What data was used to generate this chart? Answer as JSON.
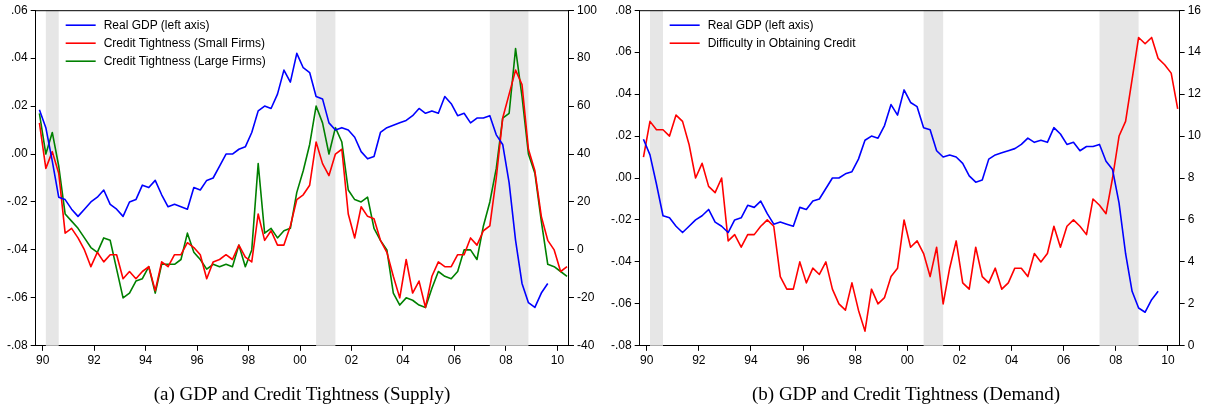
{
  "chart_data": [
    {
      "type": "line",
      "title": "(a) GDP and Credit Tightness (Supply)",
      "legend": "top left",
      "grid": false,
      "marker": "none",
      "line_style": "solid",
      "x": [
        1989.875,
        1990.125,
        1990.375,
        1990.625,
        1990.875,
        1991.125,
        1991.375,
        1991.625,
        1991.875,
        1992.125,
        1992.375,
        1992.625,
        1992.875,
        1993.125,
        1993.375,
        1993.625,
        1993.875,
        1994.125,
        1994.375,
        1994.625,
        1994.875,
        1995.125,
        1995.375,
        1995.625,
        1995.875,
        1996.125,
        1996.375,
        1996.625,
        1996.875,
        1997.125,
        1997.375,
        1997.625,
        1997.875,
        1998.125,
        1998.375,
        1998.625,
        1998.875,
        1999.125,
        1999.375,
        1999.625,
        1999.875,
        2000.125,
        2000.375,
        2000.625,
        2000.875,
        2001.125,
        2001.375,
        2001.625,
        2001.875,
        2002.125,
        2002.375,
        2002.625,
        2002.875,
        2003.125,
        2003.375,
        2003.625,
        2003.875,
        2004.125,
        2004.375,
        2004.625,
        2004.875,
        2005.125,
        2005.375,
        2005.625,
        2005.875,
        2006.125,
        2006.375,
        2006.625,
        2006.875,
        2007.125,
        2007.375,
        2007.625,
        2007.875,
        2008.125,
        2008.375,
        2008.625,
        2008.875,
        2009.125,
        2009.375,
        2009.625,
        2009.875,
        2010.125,
        2010.375
      ],
      "xlim": [
        1989.73,
        2010.45
      ],
      "xticks": [
        {
          "value": 1990,
          "label": "90"
        },
        {
          "value": 1992,
          "label": "92"
        },
        {
          "value": 1994,
          "label": "94"
        },
        {
          "value": 1996,
          "label": "96"
        },
        {
          "value": 1998,
          "label": "98"
        },
        {
          "value": 2000,
          "label": "00"
        },
        {
          "value": 2002,
          "label": "02"
        },
        {
          "value": 2004,
          "label": "04"
        },
        {
          "value": 2006,
          "label": "06"
        },
        {
          "value": 2008,
          "label": "08"
        },
        {
          "value": 2010,
          "label": "10"
        }
      ],
      "ylim": [
        -0.08,
        0.06
      ],
      "yticks": [
        {
          "value": 0.06,
          "label": ".06"
        },
        {
          "value": 0.04,
          "label": ".04"
        },
        {
          "value": 0.02,
          "label": ".02"
        },
        {
          "value": 0,
          "label": ".00"
        },
        {
          "value": -0.02,
          "label": "-.02"
        },
        {
          "value": -0.04,
          "label": "-.04"
        },
        {
          "value": -0.06,
          "label": "-.06"
        },
        {
          "value": -0.08,
          "label": "-.08"
        }
      ],
      "y2lim": [
        -40,
        100
      ],
      "y2ticks": [
        100,
        80,
        60,
        40,
        20,
        0,
        -20,
        -40
      ],
      "bands": [
        {
          "axis": "x",
          "from": 1990.125,
          "to": 1990.625,
          "color": "#e6e6e6"
        },
        {
          "axis": "x",
          "from": 2000.625,
          "to": 2001.375,
          "color": "#e6e6e6"
        },
        {
          "axis": "x",
          "from": 2007.375,
          "to": 2008.875,
          "color": "#e6e6e6"
        }
      ],
      "series": [
        {
          "name": "Real GDP (left axis)",
          "color": "#0000ff",
          "values": [
            0.0185,
            0.011,
            -0.003,
            -0.018,
            -0.019,
            -0.023,
            -0.026,
            -0.023,
            -0.02,
            -0.018,
            -0.015,
            -0.021,
            -0.023,
            -0.026,
            -0.02,
            -0.019,
            -0.013,
            -0.014,
            -0.011,
            -0.017,
            -0.022,
            -0.021,
            -0.022,
            -0.023,
            -0.014,
            -0.015,
            -0.011,
            -0.01,
            -0.005,
            0,
            0,
            0.002,
            0.003,
            0.009,
            0.018,
            0.02,
            0.019,
            0.025,
            0.035,
            0.03,
            0.042,
            0.036,
            0.034,
            0.024,
            0.023,
            0.013,
            0.01,
            0.011,
            0.01,
            0.007,
            0.001,
            -0.002,
            -0.001,
            0.009,
            0.011,
            0.012,
            0.013,
            0.014,
            0.016,
            0.019,
            0.017,
            0.018,
            0.017,
            0.024,
            0.021,
            0.016,
            0.017,
            0.013,
            0.015,
            0.015,
            0.016,
            0.008,
            0.004,
            -0.012,
            -0.036,
            -0.054,
            -0.062,
            -0.064,
            -0.058,
            -0.054,
            null,
            null,
            null
          ]
        },
        {
          "name": "Credit Tightness (Small Firms)",
          "color": "#ff0000",
          "axis": "y2",
          "values": [
            53,
            34,
            41,
            32,
            7,
            9,
            5,
            0,
            -7,
            -1,
            -5,
            -2,
            -2,
            -12,
            -9,
            -12,
            -9,
            -7,
            -17,
            -5,
            -7,
            -2,
            -2,
            3,
            1,
            -2,
            -12,
            -5,
            -4,
            -2,
            -4,
            2,
            -3,
            -5,
            15,
            4,
            8,
            2,
            2,
            10,
            21,
            23,
            27,
            45,
            36,
            31,
            40,
            42,
            15,
            5,
            18,
            14,
            13,
            4,
            -1,
            -11,
            -20,
            -4,
            -18,
            -13,
            -24,
            -11,
            -5,
            -7,
            -7,
            -2,
            -2,
            5,
            2,
            8,
            10,
            30,
            55,
            65,
            75,
            69,
            42,
            33,
            14,
            4,
            0,
            -9,
            -7
          ]
        },
        {
          "name": "Credit Tightness (Large Firms)",
          "color": "#008000",
          "axis": "y2",
          "values": [
            57,
            40,
            49,
            35,
            15,
            12,
            9,
            5,
            1,
            -1,
            5,
            4,
            -8,
            -20,
            -18,
            -13,
            -12,
            -7,
            -18,
            -6,
            -6,
            -6,
            -4,
            7,
            -1,
            -4,
            -8,
            -6,
            -7,
            -6,
            -7,
            2,
            -7,
            0,
            36,
            7,
            9,
            5,
            8,
            9,
            24,
            33,
            44,
            60,
            53,
            40,
            51,
            45,
            25,
            21,
            20,
            22,
            9,
            4,
            0,
            -18,
            -23,
            -20,
            -21,
            -23,
            -24,
            -16,
            -9,
            -11,
            -12,
            -9,
            0,
            0,
            -4,
            10,
            20,
            34,
            55,
            57,
            84,
            64,
            40,
            32,
            12,
            -6,
            -7,
            -9,
            -11
          ]
        }
      ]
    },
    {
      "type": "line",
      "title": "(b) GDP and Credit Tightness (Demand)",
      "legend": "top left",
      "grid": false,
      "marker": "none",
      "line_style": "solid",
      "x": [
        1989.875,
        1990.125,
        1990.375,
        1990.625,
        1990.875,
        1991.125,
        1991.375,
        1991.625,
        1991.875,
        1992.125,
        1992.375,
        1992.625,
        1992.875,
        1993.125,
        1993.375,
        1993.625,
        1993.875,
        1994.125,
        1994.375,
        1994.625,
        1994.875,
        1995.125,
        1995.375,
        1995.625,
        1995.875,
        1996.125,
        1996.375,
        1996.625,
        1996.875,
        1997.125,
        1997.375,
        1997.625,
        1997.875,
        1998.125,
        1998.375,
        1998.625,
        1998.875,
        1999.125,
        1999.375,
        1999.625,
        1999.875,
        2000.125,
        2000.375,
        2000.625,
        2000.875,
        2001.125,
        2001.375,
        2001.625,
        2001.875,
        2002.125,
        2002.375,
        2002.625,
        2002.875,
        2003.125,
        2003.375,
        2003.625,
        2003.875,
        2004.125,
        2004.375,
        2004.625,
        2004.875,
        2005.125,
        2005.375,
        2005.625,
        2005.875,
        2006.125,
        2006.375,
        2006.625,
        2006.875,
        2007.125,
        2007.375,
        2007.625,
        2007.875,
        2008.125,
        2008.375,
        2008.625,
        2008.875,
        2009.125,
        2009.375,
        2009.625,
        2009.875,
        2010.125,
        2010.375
      ],
      "xlim": [
        1989.73,
        2010.45
      ],
      "xticks": [
        {
          "value": 1990,
          "label": "90"
        },
        {
          "value": 1992,
          "label": "92"
        },
        {
          "value": 1994,
          "label": "94"
        },
        {
          "value": 1996,
          "label": "96"
        },
        {
          "value": 1998,
          "label": "98"
        },
        {
          "value": 2000,
          "label": "00"
        },
        {
          "value": 2002,
          "label": "02"
        },
        {
          "value": 2004,
          "label": "04"
        },
        {
          "value": 2006,
          "label": "06"
        },
        {
          "value": 2008,
          "label": "08"
        },
        {
          "value": 2010,
          "label": "10"
        }
      ],
      "ylim": [
        -0.08,
        0.08
      ],
      "yticks": [
        {
          "value": 0.08,
          "label": ".08"
        },
        {
          "value": 0.06,
          "label": ".06"
        },
        {
          "value": 0.04,
          "label": ".04"
        },
        {
          "value": 0.02,
          "label": ".02"
        },
        {
          "value": 0,
          "label": ".00"
        },
        {
          "value": -0.02,
          "label": "-.02"
        },
        {
          "value": -0.04,
          "label": "-.04"
        },
        {
          "value": -0.06,
          "label": "-.06"
        },
        {
          "value": -0.08,
          "label": "-.08"
        }
      ],
      "y2lim": [
        0,
        16
      ],
      "y2ticks": [
        16,
        14,
        12,
        10,
        8,
        6,
        4,
        2,
        0
      ],
      "bands": [
        {
          "axis": "x",
          "from": 1990.125,
          "to": 1990.625,
          "color": "#e6e6e6"
        },
        {
          "axis": "x",
          "from": 2000.625,
          "to": 2001.375,
          "color": "#e6e6e6"
        },
        {
          "axis": "x",
          "from": 2007.375,
          "to": 2008.875,
          "color": "#e6e6e6"
        }
      ],
      "series": [
        {
          "name": "Real GDP (left axis)",
          "color": "#0000ff",
          "values": [
            0.0185,
            0.011,
            -0.003,
            -0.018,
            -0.019,
            -0.023,
            -0.026,
            -0.023,
            -0.02,
            -0.018,
            -0.015,
            -0.021,
            -0.023,
            -0.026,
            -0.02,
            -0.019,
            -0.013,
            -0.014,
            -0.011,
            -0.017,
            -0.022,
            -0.021,
            -0.022,
            -0.023,
            -0.014,
            -0.015,
            -0.011,
            -0.01,
            -0.005,
            0,
            0,
            0.002,
            0.003,
            0.009,
            0.018,
            0.02,
            0.019,
            0.025,
            0.035,
            0.03,
            0.042,
            0.036,
            0.034,
            0.024,
            0.023,
            0.013,
            0.01,
            0.011,
            0.01,
            0.007,
            0.001,
            -0.002,
            -0.001,
            0.009,
            0.011,
            0.012,
            0.013,
            0.014,
            0.016,
            0.019,
            0.017,
            0.018,
            0.017,
            0.024,
            0.021,
            0.016,
            0.017,
            0.013,
            0.015,
            0.015,
            0.016,
            0.008,
            0.004,
            -0.012,
            -0.036,
            -0.054,
            -0.062,
            -0.064,
            -0.058,
            -0.054,
            null,
            null,
            null
          ]
        },
        {
          "name": "Difficulty in Obtaining Credit",
          "color": "#ff0000",
          "axis": "y2",
          "values": [
            9.0,
            10.7,
            10.3,
            10.3,
            10.0,
            11.0,
            10.7,
            9.6,
            8.0,
            8.7,
            7.6,
            7.3,
            8.0,
            5.0,
            5.3,
            4.7,
            5.3,
            5.3,
            5.7,
            6.0,
            5.7,
            3.3,
            2.7,
            2.7,
            4.0,
            3.0,
            3.7,
            3.4,
            4.0,
            2.7,
            2.0,
            1.7,
            3.0,
            1.7,
            0.7,
            2.7,
            2.0,
            2.3,
            3.3,
            3.7,
            6.0,
            4.7,
            5.0,
            4.4,
            3.3,
            4.7,
            2.0,
            3.7,
            5.0,
            3.0,
            2.7,
            4.7,
            3.3,
            3.0,
            3.7,
            2.7,
            3.0,
            3.7,
            3.7,
            3.3,
            4.4,
            4.0,
            4.4,
            5.7,
            4.7,
            5.7,
            6.0,
            5.7,
            5.3,
            7.0,
            6.7,
            6.3,
            8.0,
            10.0,
            10.7,
            12.7,
            14.7,
            14.4,
            14.7,
            13.7,
            13.4,
            13.0,
            11.3
          ]
        }
      ]
    }
  ]
}
